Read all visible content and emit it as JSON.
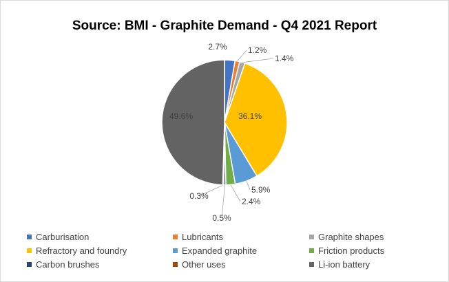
{
  "chart_data": {
    "type": "pie",
    "title": "Source: BMI - Graphite Demand - Q4 2021 Report",
    "slices": [
      {
        "name": "Carburisation",
        "value": 2.7,
        "label": "2.7%",
        "color": "#4472C4"
      },
      {
        "name": "Lubricants",
        "value": 1.2,
        "label": "1.2%",
        "color": "#ED7D31"
      },
      {
        "name": "Graphite shapes",
        "value": 1.4,
        "label": "1.4%",
        "color": "#A5A5A5"
      },
      {
        "name": "Refractory and foundry",
        "value": 36.1,
        "label": "36.1%",
        "color": "#FFC000"
      },
      {
        "name": "Expanded graphite",
        "value": 5.9,
        "label": "5.9%",
        "color": "#5B9BD5"
      },
      {
        "name": "Friction products",
        "value": 2.4,
        "label": "2.4%",
        "color": "#70AD47"
      },
      {
        "name": "Carbon brushes",
        "value": 0.5,
        "label": "0.5%",
        "color": "#264478"
      },
      {
        "name": "Other uses",
        "value": 0.3,
        "label": "0.3%",
        "color": "#9E480E"
      },
      {
        "name": "Li-ion battery",
        "value": 49.6,
        "label": "49.6%",
        "color": "#636363"
      }
    ],
    "legend_position": "bottom"
  }
}
